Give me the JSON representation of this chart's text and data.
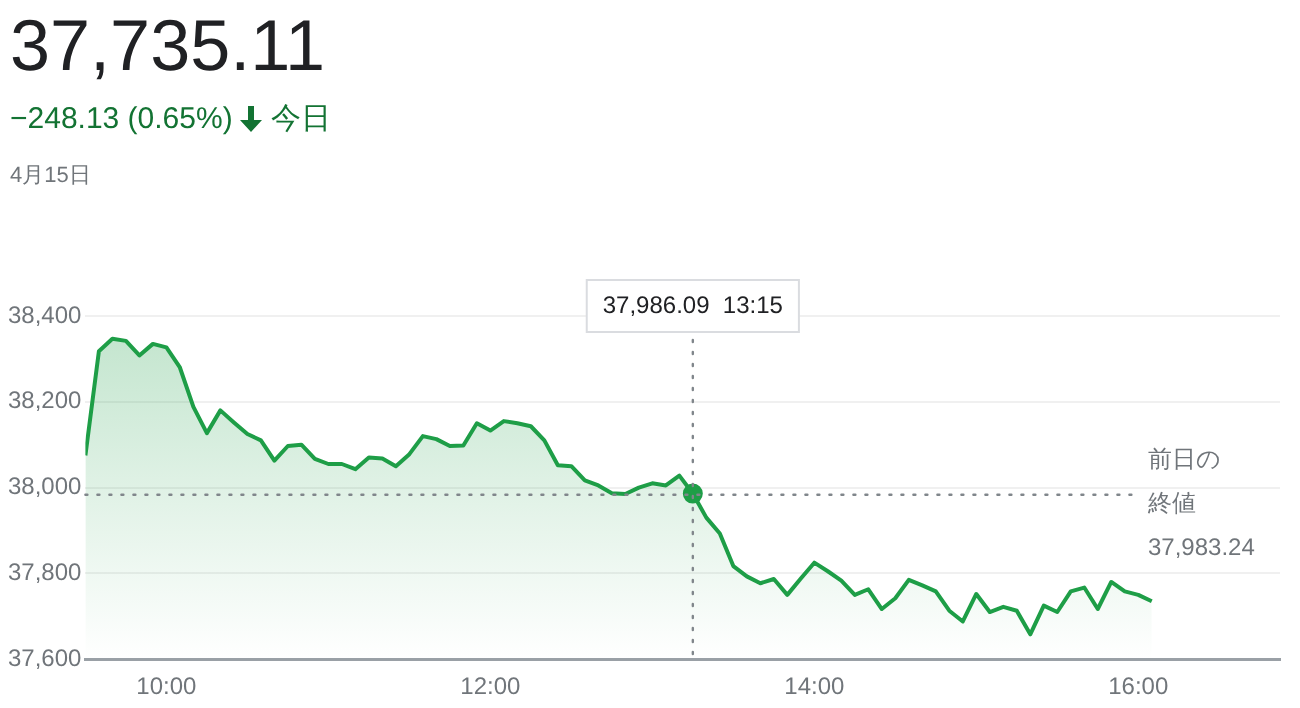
{
  "chart_data": {
    "type": "area",
    "title": "37,735.11",
    "subtitle": "−248.13 (0.65%)",
    "annotations": [
      "今日",
      "4月15日",
      "37,986.09  13:15"
    ],
    "x": [
      9.5,
      9.5833,
      9.6667,
      9.75,
      9.8333,
      9.9167,
      10,
      10.0833,
      10.1667,
      10.25,
      10.3333,
      10.4167,
      10.5,
      10.5833,
      10.6667,
      10.75,
      10.8333,
      10.9167,
      11,
      11.0833,
      11.1667,
      11.25,
      11.3333,
      11.4167,
      11.5,
      11.5833,
      11.6667,
      11.75,
      11.8333,
      11.9167,
      12,
      12.0833,
      12.1667,
      12.25,
      12.3333,
      12.4167,
      12.5,
      12.5833,
      12.6667,
      12.75,
      12.8333,
      12.9167,
      13,
      13.0833,
      13.1667,
      13.25,
      13.3333,
      13.4167,
      13.5,
      13.5833,
      13.6667,
      13.75,
      13.8333,
      13.9167,
      14,
      14.0833,
      14.1667,
      14.25,
      14.3333,
      14.4167,
      14.5,
      14.5833,
      14.6667,
      14.75,
      14.8333,
      14.9167,
      15,
      15.0833,
      15.1667,
      15.25,
      15.3333,
      15.4167,
      15.5,
      15.5833,
      15.6667,
      15.75,
      15.8333,
      15.9167,
      16,
      16.0833
    ],
    "series": [
      {
        "color": "#1e9e47",
        "values": [
          38075,
          38318,
          38347,
          38342,
          38308,
          38335,
          38327,
          38280,
          38188,
          38127,
          38180,
          38152,
          38125,
          38110,
          38063,
          38097,
          38100,
          38067,
          38055,
          38055,
          38043,
          38070,
          38068,
          38050,
          38078,
          38120,
          38113,
          38097,
          38098,
          38150,
          38133,
          38155,
          38150,
          38143,
          38110,
          38052,
          38050,
          38017,
          38005,
          37987,
          37985,
          38000,
          38010,
          38005,
          38028,
          37986.09,
          37930,
          37893,
          37817,
          37793,
          37777,
          37787,
          37750,
          37788,
          37825,
          37805,
          37783,
          37750,
          37763,
          37717,
          37742,
          37785,
          37772,
          37758,
          37713,
          37688,
          37752,
          37710,
          37722,
          37713,
          37658,
          37725,
          37710,
          37758,
          37767,
          37717,
          37780,
          37758,
          37750,
          37735.11
        ]
      },
      {
        "type": "scatter",
        "color": "#1e9e47",
        "x": [
          13.25
        ],
        "values": [
          37986.09
        ],
        "marker": "circle"
      }
    ],
    "xlim": [
      9.5,
      16.875
    ],
    "xticks": [
      {
        "value": 10,
        "label": "10:00"
      },
      {
        "value": 12,
        "label": "12:00"
      },
      {
        "value": 14,
        "label": "14:00"
      },
      {
        "value": 16,
        "label": "16:00"
      }
    ],
    "ylim": [
      37600,
      38400
    ],
    "yticks": [
      {
        "value": 37600,
        "label": "37,600"
      },
      {
        "value": 37800,
        "label": "37,800"
      },
      {
        "value": 38000,
        "label": "38,000"
      },
      {
        "value": 38200,
        "label": "38,200"
      },
      {
        "value": 38400,
        "label": "38,400"
      }
    ],
    "ref_lines": [
      {
        "axis": "y",
        "value": 37983.24,
        "label": "前日の終値 37,983.24",
        "color": "#80868b",
        "line_style": "dotted"
      },
      {
        "axis": "x",
        "value": 13.25,
        "color": "#80868b",
        "line_style": "dotted"
      }
    ],
    "grid": "y",
    "legend": false,
    "marker": "none",
    "line_style": "solid"
  }
}
